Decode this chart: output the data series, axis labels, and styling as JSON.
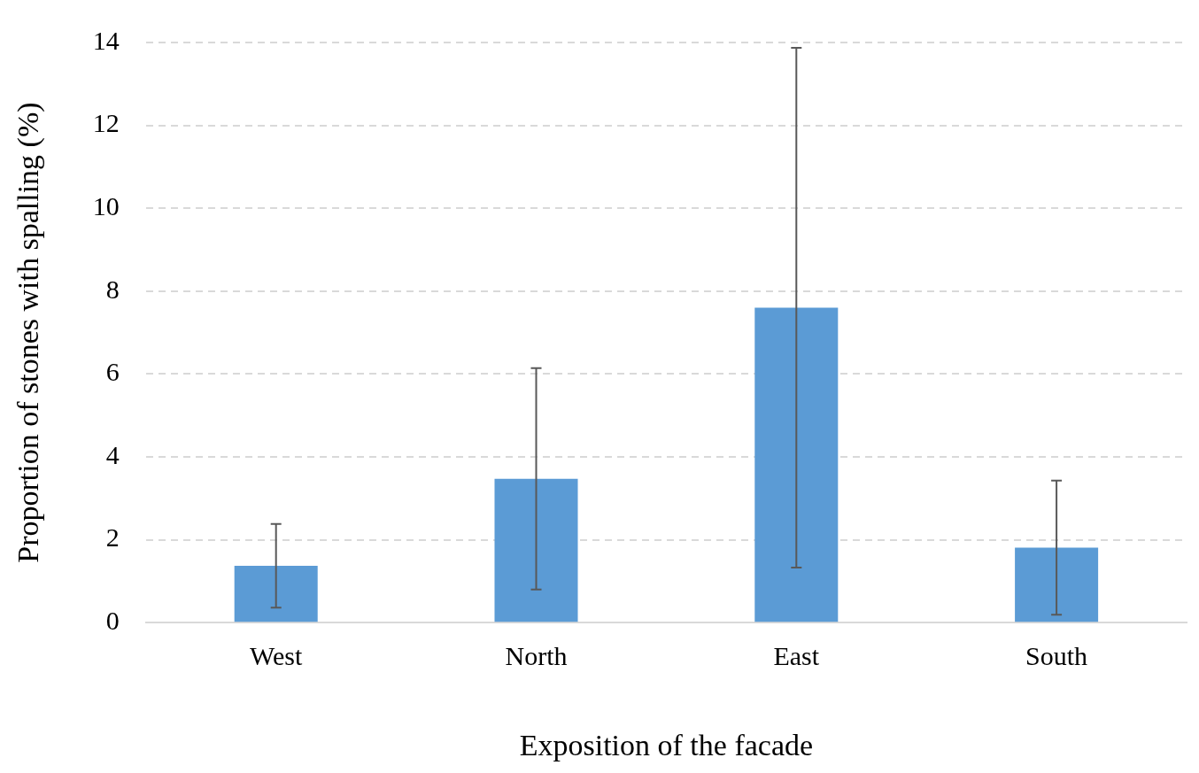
{
  "chart_data": {
    "type": "bar",
    "xlabel": "Exposition of the facade",
    "ylabel": "Proportion of stones with spalling (%)",
    "categories": [
      "West",
      "North",
      "East",
      "South"
    ],
    "values": [
      1.37,
      3.47,
      7.6,
      1.81
    ],
    "errors": [
      1.01,
      2.67,
      6.27,
      1.62
    ],
    "color": "#5b9bd5",
    "ylim": [
      0,
      14
    ],
    "yticks": [
      0,
      2,
      4,
      6,
      8,
      10,
      12,
      14
    ],
    "grid": "y",
    "legend": false
  }
}
